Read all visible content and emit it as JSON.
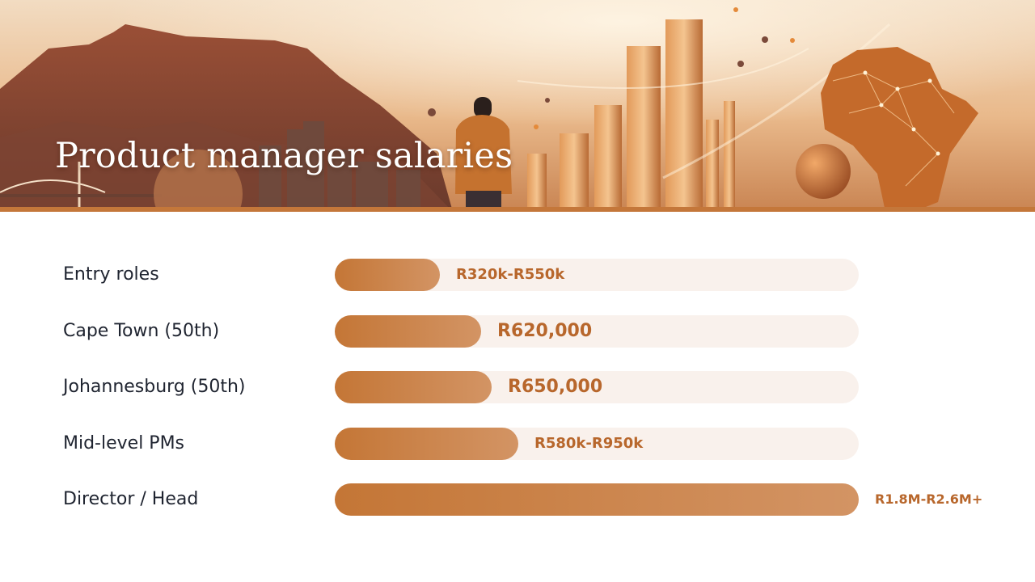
{
  "slide": {
    "title": "Product manager salaries"
  },
  "colors": {
    "bar_start": "#c47636",
    "bar_end": "#d39464",
    "track": "#f9f1ec",
    "value_text": "#b8672c",
    "label_text": "#1f2430",
    "banner_rule": "#c4773a"
  },
  "chart_data": {
    "type": "bar",
    "orientation": "horizontal",
    "title": "Product manager salaries",
    "xlabel": "",
    "ylabel": "",
    "grid": false,
    "legend": "none",
    "categories": [
      "Entry roles",
      "Cape Town (50th)",
      "Johannesburg (50th)",
      "Mid-level PMs",
      "Director / Head"
    ],
    "bar_fill_fraction": [
      0.2,
      0.28,
      0.3,
      0.35,
      1.0
    ],
    "value_labels": [
      "R320k-R550k",
      "R620,000",
      "R650,000",
      "R580k-R950k",
      "R1.8M-R2.6M+"
    ]
  }
}
